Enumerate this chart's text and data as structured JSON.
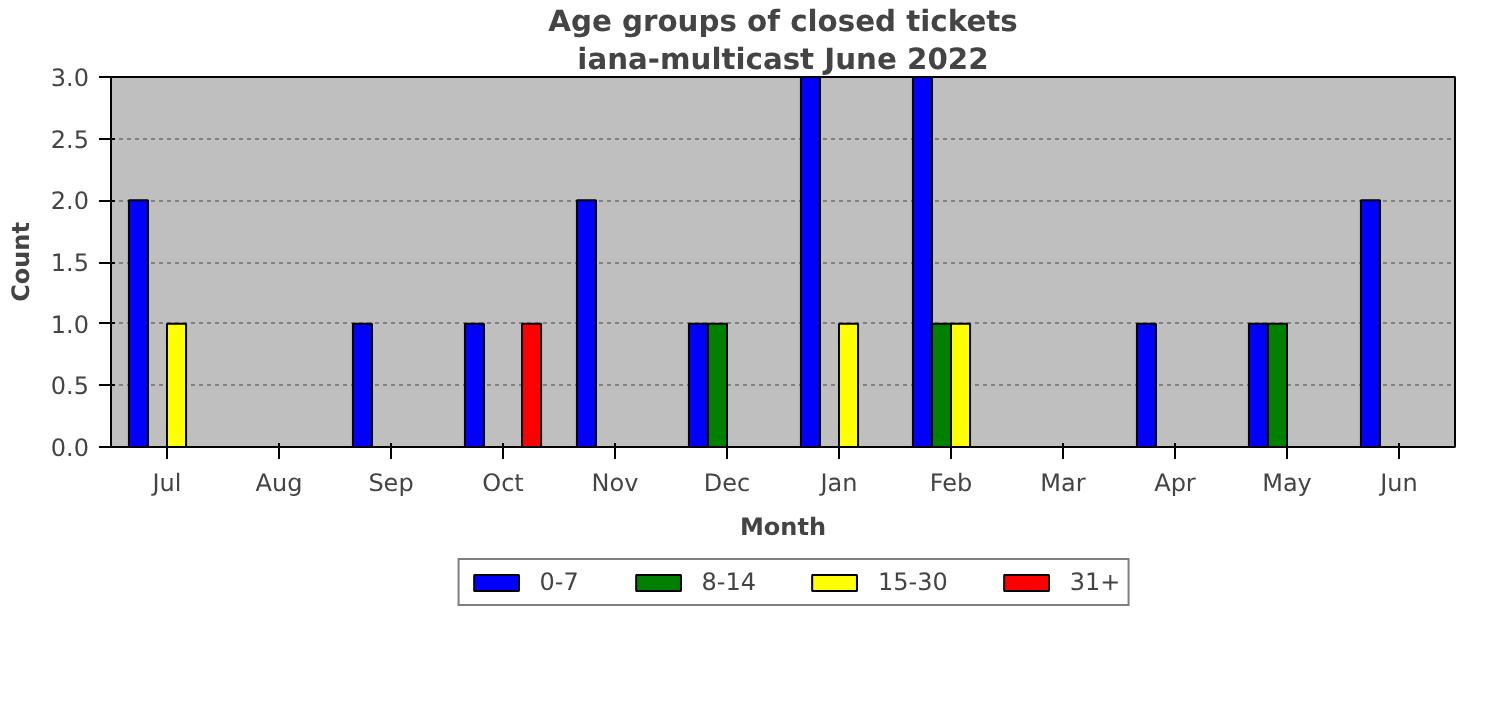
{
  "chart_data": {
    "type": "bar",
    "title": "Age groups of closed tickets",
    "subtitle": "iana-multicast June 2022",
    "xlabel": "Month",
    "ylabel": "Count",
    "categories": [
      "Jul",
      "Aug",
      "Sep",
      "Oct",
      "Nov",
      "Dec",
      "Jan",
      "Feb",
      "Mar",
      "Apr",
      "May",
      "Jun"
    ],
    "series": [
      {
        "name": "0-7",
        "color": "#0000ff",
        "values": [
          2,
          0,
          1,
          1,
          2,
          1,
          3,
          3,
          0,
          1,
          1,
          2
        ]
      },
      {
        "name": "8-14",
        "color": "#008000",
        "values": [
          0,
          0,
          0,
          0,
          0,
          1,
          0,
          1,
          0,
          0,
          1,
          0
        ]
      },
      {
        "name": "15-30",
        "color": "#ffff00",
        "values": [
          1,
          0,
          0,
          0,
          0,
          0,
          1,
          1,
          0,
          0,
          0,
          0
        ]
      },
      {
        "name": "31+",
        "color": "#ff0000",
        "values": [
          0,
          0,
          0,
          1,
          0,
          0,
          0,
          0,
          0,
          0,
          0,
          0
        ]
      }
    ],
    "ylim": [
      0,
      3
    ],
    "yticks": [
      {
        "value": 0,
        "label": "0.0"
      },
      {
        "value": 0.5,
        "label": "0.5"
      },
      {
        "value": 1,
        "label": "1.0"
      },
      {
        "value": 1.5,
        "label": "1.5"
      },
      {
        "value": 2,
        "label": "2.0"
      },
      {
        "value": 2.5,
        "label": "2.5"
      },
      {
        "value": 3,
        "label": "3.0"
      }
    ],
    "grid": "y",
    "legend": "bottom"
  }
}
